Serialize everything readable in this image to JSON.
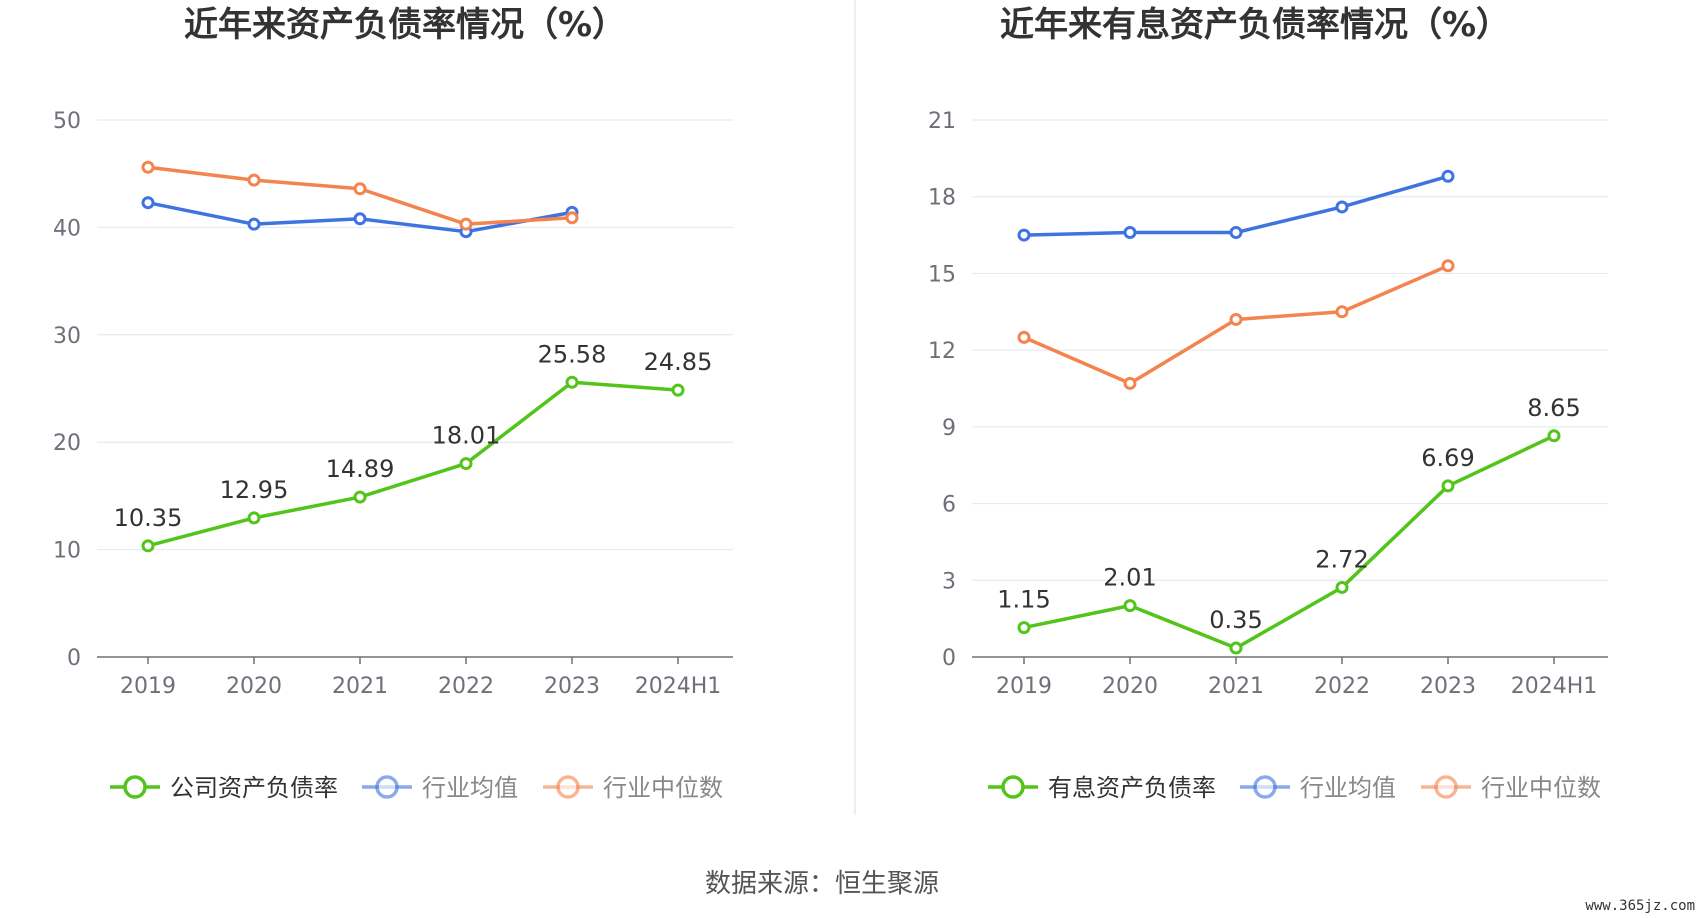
{
  "chart_data": [
    {
      "type": "line",
      "title": "近年来资产负债率情况（%）",
      "categories": [
        "2019",
        "2020",
        "2021",
        "2022",
        "2023",
        "2024H1"
      ],
      "yticks": [
        "0",
        "10",
        "20",
        "30",
        "40",
        "50"
      ],
      "ylim": [
        0,
        50
      ],
      "grid": true,
      "legend_position": "bottom",
      "series": [
        {
          "name": "公司资产负债率",
          "color": "#52c41a",
          "values": [
            10.35,
            12.95,
            14.89,
            18.01,
            25.58,
            24.85
          ],
          "labels": [
            "10.35",
            "12.95",
            "14.89",
            "18.01",
            "25.58",
            "24.85"
          ]
        },
        {
          "name": "行业均值",
          "color": "#3e73e0",
          "values": [
            42.3,
            40.3,
            40.8,
            39.6,
            41.4,
            null
          ]
        },
        {
          "name": "行业中位数",
          "color": "#f4844e",
          "values": [
            45.6,
            44.4,
            43.6,
            40.3,
            40.9,
            null
          ]
        }
      ]
    },
    {
      "type": "line",
      "title": "近年来有息资产负债率情况（%）",
      "categories": [
        "2019",
        "2020",
        "2021",
        "2022",
        "2023",
        "2024H1"
      ],
      "yticks": [
        "0",
        "3",
        "6",
        "9",
        "12",
        "15",
        "18",
        "21"
      ],
      "ylim": [
        0,
        21
      ],
      "grid": true,
      "legend_position": "bottom",
      "series": [
        {
          "name": "有息资产负债率",
          "color": "#52c41a",
          "values": [
            1.15,
            2.01,
            0.35,
            2.72,
            6.69,
            8.65
          ],
          "labels": [
            "1.15",
            "2.01",
            "0.35",
            "2.72",
            "6.69",
            "8.65"
          ]
        },
        {
          "name": "行业均值",
          "color": "#3e73e0",
          "values": [
            16.5,
            16.6,
            16.6,
            17.6,
            18.8,
            null
          ]
        },
        {
          "name": "行业中位数",
          "color": "#f4844e",
          "values": [
            12.5,
            10.7,
            13.2,
            13.5,
            15.3,
            null
          ]
        }
      ]
    }
  ],
  "footer": {
    "source": "数据来源：恒生聚源",
    "watermark": "www.365jz.com"
  }
}
